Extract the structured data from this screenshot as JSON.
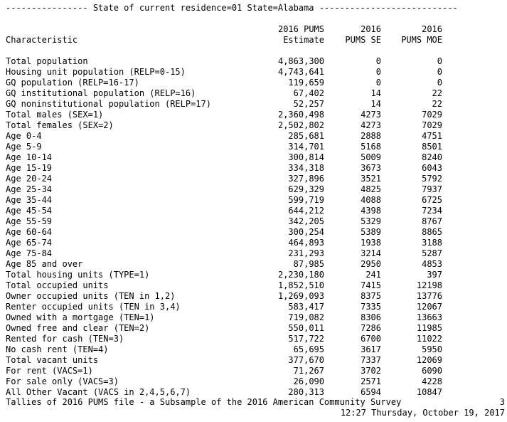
{
  "title_line": "---------------- State of current residence=01 State=Alabama ---------------------------",
  "headers": {
    "characteristic": "Characteristic",
    "estimate_line1": "2016 PUMS",
    "estimate_line2": "Estimate",
    "se_line1": "2016",
    "se_line2": "PUMS SE",
    "moe_line1": "2016",
    "moe_line2": "PUMS MOE"
  },
  "rows": [
    {
      "label": "Total population",
      "estimate": "4,863,300",
      "se": "0",
      "moe": "0"
    },
    {
      "label": "Housing unit population (RELP=0-15)",
      "estimate": "4,743,641",
      "se": "0",
      "moe": "0"
    },
    {
      "label": "GQ population (RELP=16-17)",
      "estimate": "119,659",
      "se": "0",
      "moe": "0"
    },
    {
      "label": "GQ institutional population (RELP=16)",
      "estimate": "67,402",
      "se": "14",
      "moe": "22"
    },
    {
      "label": "GQ noninstitutional population (RELP=17)",
      "estimate": "52,257",
      "se": "14",
      "moe": "22"
    },
    {
      "label": "Total males (SEX=1)",
      "estimate": "2,360,498",
      "se": "4273",
      "moe": "7029"
    },
    {
      "label": "Total females (SEX=2)",
      "estimate": "2,502,802",
      "se": "4273",
      "moe": "7029"
    },
    {
      "label": "Age 0-4",
      "estimate": "285,681",
      "se": "2888",
      "moe": "4751"
    },
    {
      "label": "Age 5-9",
      "estimate": "314,701",
      "se": "5168",
      "moe": "8501"
    },
    {
      "label": "Age 10-14",
      "estimate": "300,814",
      "se": "5009",
      "moe": "8240"
    },
    {
      "label": "Age 15-19",
      "estimate": "334,318",
      "se": "3673",
      "moe": "6043"
    },
    {
      "label": "Age 20-24",
      "estimate": "327,896",
      "se": "3521",
      "moe": "5792"
    },
    {
      "label": "Age 25-34",
      "estimate": "629,329",
      "se": "4825",
      "moe": "7937"
    },
    {
      "label": "Age 35-44",
      "estimate": "599,719",
      "se": "4088",
      "moe": "6725"
    },
    {
      "label": "Age 45-54",
      "estimate": "644,212",
      "se": "4398",
      "moe": "7234"
    },
    {
      "label": "Age 55-59",
      "estimate": "342,205",
      "se": "5329",
      "moe": "8767"
    },
    {
      "label": "Age 60-64",
      "estimate": "300,254",
      "se": "5389",
      "moe": "8865"
    },
    {
      "label": "Age 65-74",
      "estimate": "464,893",
      "se": "1938",
      "moe": "3188"
    },
    {
      "label": "Age 75-84",
      "estimate": "231,293",
      "se": "3214",
      "moe": "5287"
    },
    {
      "label": "Age 85 and over",
      "estimate": "87,985",
      "se": "2950",
      "moe": "4853"
    },
    {
      "label": "Total housing units (TYPE=1)",
      "estimate": "2,230,180",
      "se": "241",
      "moe": "397"
    },
    {
      "label": "Total occupied units",
      "estimate": "1,852,510",
      "se": "7415",
      "moe": "12198"
    },
    {
      "label": "Owner occupied units (TEN in 1,2)",
      "estimate": "1,269,093",
      "se": "8375",
      "moe": "13776"
    },
    {
      "label": "Renter occupied units (TEN in 3,4)",
      "estimate": "583,417",
      "se": "7335",
      "moe": "12067"
    },
    {
      "label": "Owned with a mortgage (TEN=1)",
      "estimate": "719,082",
      "se": "8306",
      "moe": "13663"
    },
    {
      "label": "Owned free and clear (TEN=2)",
      "estimate": "550,011",
      "se": "7286",
      "moe": "11985"
    },
    {
      "label": "Rented for cash (TEN=3)",
      "estimate": "517,722",
      "se": "6700",
      "moe": "11022"
    },
    {
      "label": "No cash rent (TEN=4)",
      "estimate": "65,695",
      "se": "3617",
      "moe": "5950"
    },
    {
      "label": "Total vacant units",
      "estimate": "377,670",
      "se": "7337",
      "moe": "12069"
    },
    {
      "label": "For rent (VACS=1)",
      "estimate": "71,267",
      "se": "3702",
      "moe": "6090"
    },
    {
      "label": "For sale only (VACS=3)",
      "estimate": "26,090",
      "se": "2571",
      "moe": "4228"
    },
    {
      "label": "All Other Vacant (VACS in 2,4,5,6,7)",
      "estimate": "280,313",
      "se": "6594",
      "moe": "10847"
    }
  ],
  "footer": {
    "note": "Tallies of 2016 PUMS file - a Subsample of the 2016 American Community Survey",
    "page_number": "3",
    "timestamp": "12:27 Thursday, October 19, 2017"
  }
}
